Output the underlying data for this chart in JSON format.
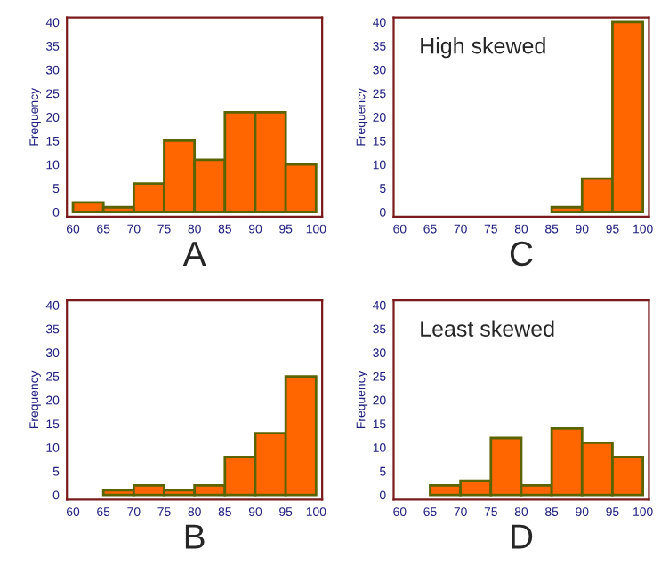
{
  "chart_data": [
    {
      "type": "histogram",
      "xlabel": "A",
      "ylabel": "Frequency",
      "bins": [
        60,
        65,
        70,
        75,
        80,
        85,
        90,
        95,
        100
      ],
      "values": [
        2,
        1,
        6,
        15,
        11,
        21,
        21,
        10
      ],
      "color": "#ff6600",
      "xlim": [
        59,
        101
      ],
      "ylim": [
        -1,
        41
      ],
      "xticks": [
        60,
        65,
        70,
        75,
        80,
        85,
        90,
        95,
        100
      ],
      "yticks": [
        0,
        5,
        10,
        15,
        20,
        25,
        30,
        35,
        40
      ]
    },
    {
      "type": "histogram",
      "xlabel": "C",
      "ylabel": "Frequency",
      "annotations": [
        "High skewed"
      ],
      "bins": [
        60,
        65,
        70,
        75,
        80,
        85,
        90,
        95,
        100
      ],
      "values": [
        0,
        0,
        0,
        0,
        0,
        1,
        7,
        40
      ],
      "color": "#ff6600",
      "xlim": [
        59,
        101
      ],
      "ylim": [
        -1,
        41
      ],
      "xticks": [
        60,
        65,
        70,
        75,
        80,
        85,
        90,
        95,
        100
      ],
      "yticks": [
        0,
        5,
        10,
        15,
        20,
        25,
        30,
        35,
        40
      ]
    },
    {
      "type": "histogram",
      "xlabel": "B",
      "ylabel": "Frequency",
      "bins": [
        60,
        65,
        70,
        75,
        80,
        85,
        90,
        95,
        100
      ],
      "values": [
        0,
        1,
        2,
        1,
        2,
        8,
        13,
        25
      ],
      "color": "#ff6600",
      "xlim": [
        59,
        101
      ],
      "ylim": [
        -1,
        41
      ],
      "xticks": [
        60,
        65,
        70,
        75,
        80,
        85,
        90,
        95,
        100
      ],
      "yticks": [
        0,
        5,
        10,
        15,
        20,
        25,
        30,
        35,
        40
      ]
    },
    {
      "type": "histogram",
      "xlabel": "D",
      "ylabel": "Frequency",
      "annotations": [
        "Least skewed"
      ],
      "bins": [
        60,
        65,
        70,
        75,
        80,
        85,
        90,
        95,
        100
      ],
      "values": [
        0,
        2,
        3,
        12,
        2,
        14,
        11,
        8
      ],
      "color": "#ff6600",
      "xlim": [
        59,
        101
      ],
      "ylim": [
        -1,
        41
      ],
      "xticks": [
        60,
        65,
        70,
        75,
        80,
        85,
        90,
        95,
        100
      ],
      "yticks": [
        0,
        5,
        10,
        15,
        20,
        25,
        30,
        35,
        40
      ]
    }
  ]
}
